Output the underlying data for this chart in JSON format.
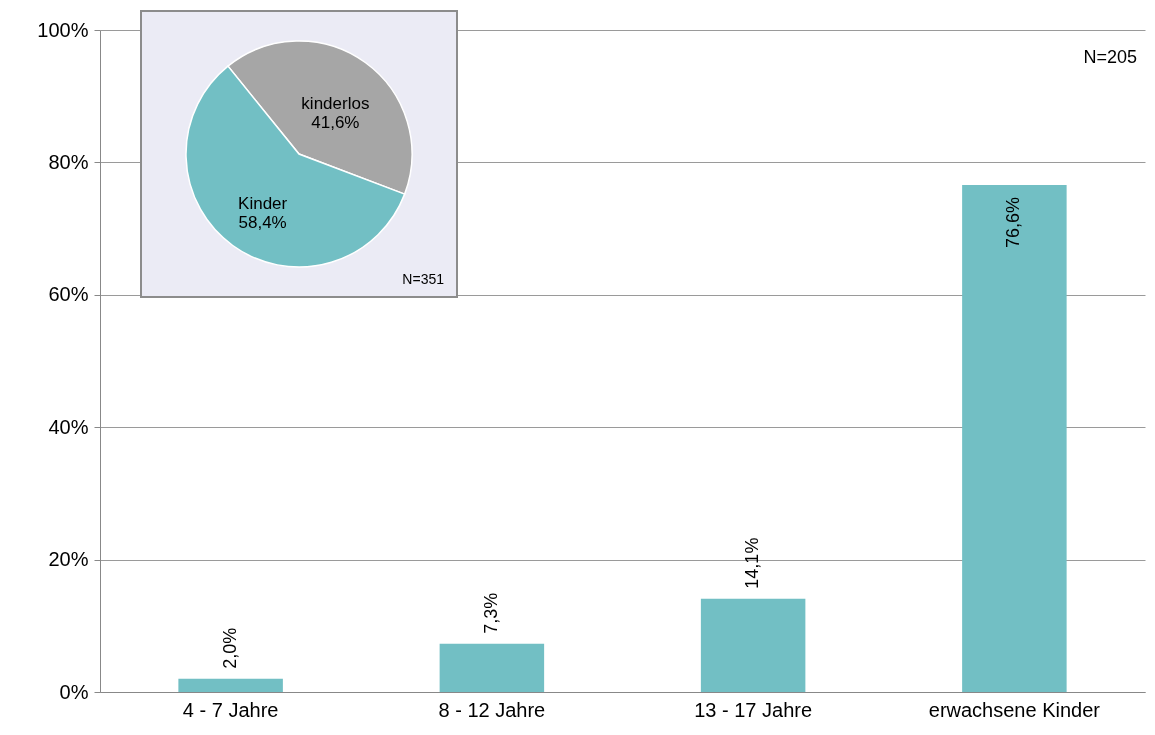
{
  "chart_data": [
    {
      "type": "bar",
      "categories": [
        "4 - 7 Jahre",
        "8 - 12 Jahre",
        "13 - 17 Jahre",
        "erwachsene Kinder"
      ],
      "values": [
        2.0,
        7.3,
        14.1,
        76.6
      ],
      "value_labels": [
        "2,0%",
        "7,3%",
        "14,1%",
        "76,6%"
      ],
      "color": "#72bfc4",
      "ylim": [
        0,
        100
      ],
      "yticks": [
        {
          "value": 0,
          "label": "0%"
        },
        {
          "value": 20,
          "label": "20%"
        },
        {
          "value": 40,
          "label": "40%"
        },
        {
          "value": 60,
          "label": "60%"
        },
        {
          "value": 80,
          "label": "80%"
        },
        {
          "value": 100,
          "label": "100%"
        }
      ],
      "grid": "y",
      "annotations": [
        "N=205"
      ]
    },
    {
      "type": "pie",
      "categories": [
        "kinderlos",
        "Kinder"
      ],
      "values": [
        41.6,
        58.4
      ],
      "value_labels": [
        "41,6%",
        "58,4%"
      ],
      "colors": [
        "#a6a6a6",
        "#72bfc4"
      ],
      "annotations": [
        "N=351"
      ]
    }
  ]
}
